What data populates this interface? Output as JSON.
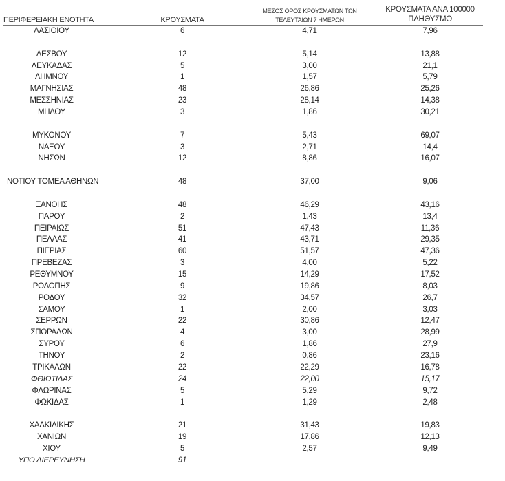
{
  "header": {
    "region": "ΠΕΡΙΦΕΡΕΙΑΚΗ ΕΝΟΤΗΤΑ",
    "cases": "ΚΡΟΥΣΜΑΤΑ",
    "avg_line1": "ΜΕΣΟΣ ΟΡΟΣ ΚΡΟΥΣΜΑΤΩΝ ΤΩΝ",
    "avg_line2": "ΤΕΛΕΥΤΑΙΩΝ 7 ΗΜΕΡΩΝ",
    "per100k_line1": "ΚΡΟΥΣΜΑΤΑ ΑΝΑ 100000",
    "per100k_line2": "ΠΛΗΘΥΣΜΟ"
  },
  "groups": [
    [
      [
        "ΛΑΣΙΘΙΟΥ",
        "6",
        "4,71",
        "7,96"
      ]
    ],
    [
      [
        "ΛΕΣΒΟΥ",
        "12",
        "5,14",
        "13,88"
      ],
      [
        "ΛΕΥΚΑΔΑΣ",
        "5",
        "3,00",
        "21,1"
      ],
      [
        "ΛΗΜΝΟΥ",
        "1",
        "1,57",
        "5,79"
      ],
      [
        "ΜΑΓΝΗΣΙΑΣ",
        "48",
        "26,86",
        "25,26"
      ],
      [
        "ΜΕΣΣΗΝΙΑΣ",
        "23",
        "28,14",
        "14,38"
      ],
      [
        "ΜΗΛΟΥ",
        "3",
        "1,86",
        "30,21"
      ]
    ],
    [
      [
        "ΜΥΚΟΝΟΥ",
        "7",
        "5,43",
        "69,07"
      ],
      [
        "ΝΑΞΟΥ",
        "3",
        "2,71",
        "14,4"
      ],
      [
        "ΝΗΣΩΝ",
        "12",
        "8,86",
        "16,07"
      ]
    ],
    [
      [
        "ΝΟΤΙΟΥ ΤΟΜΕΑ ΑΘΗΝΩΝ",
        "48",
        "37,00",
        "9,06"
      ]
    ],
    [
      [
        "ΞΑΝΘΗΣ",
        "48",
        "46,29",
        "43,16"
      ],
      [
        "ΠΑΡΟΥ",
        "2",
        "1,43",
        "13,4"
      ],
      [
        "ΠΕΙΡΑΙΩΣ",
        "51",
        "47,43",
        "11,36"
      ],
      [
        "ΠΕΛΛΑΣ",
        "41",
        "43,71",
        "29,35"
      ],
      [
        "ΠΙΕΡΙΑΣ",
        "60",
        "51,57",
        "47,36"
      ],
      [
        "ΠΡΕΒΕΖΑΣ",
        "3",
        "4,00",
        "5,22"
      ],
      [
        "ΡΕΘΥΜΝΟΥ",
        "15",
        "14,29",
        "17,52"
      ],
      [
        "ΡΟΔΟΠΗΣ",
        "9",
        "19,86",
        "8,03"
      ],
      [
        "ΡΟΔΟΥ",
        "32",
        "34,57",
        "26,7"
      ],
      [
        "ΣΑΜΟΥ",
        "1",
        "2,00",
        "3,03"
      ],
      [
        "ΣΕΡΡΩΝ",
        "22",
        "30,86",
        "12,47"
      ],
      [
        "ΣΠΟΡΑΔΩΝ",
        "4",
        "3,00",
        "28,99"
      ],
      [
        "ΣΥΡΟΥ",
        "6",
        "1,86",
        "27,9"
      ],
      [
        "ΤΗΝΟΥ",
        "2",
        "0,86",
        "23,16"
      ],
      [
        "ΤΡΙΚΑΛΩΝ",
        "22",
        "22,29",
        "16,78"
      ],
      [
        "ΦΘΙΩΤΙΔΑΣ",
        "24",
        "22,00",
        "15,17"
      ],
      [
        "ΦΛΩΡΙΝΑΣ",
        "5",
        "5,29",
        "9,72"
      ],
      [
        "ΦΩΚΙΔΑΣ",
        "1",
        "1,29",
        "2,48"
      ]
    ],
    [
      [
        "ΧΑΛΚΙΔΙΚΗΣ",
        "21",
        "31,43",
        "19,83"
      ],
      [
        "ΧΑΝΙΩΝ",
        "19",
        "17,86",
        "12,13"
      ],
      [
        "ΧΙΟΥ",
        "5",
        "2,57",
        "9,49"
      ],
      [
        "ΥΠΟ ΔΙΕΡΕΥΝΗΣΗ",
        "91",
        "",
        ""
      ]
    ]
  ],
  "italic_rows": [
    "ΦΘΙΩΤΙΔΑΣ",
    "ΥΠΟ ΔΙΕΡΕΥΝΗΣΗ"
  ]
}
